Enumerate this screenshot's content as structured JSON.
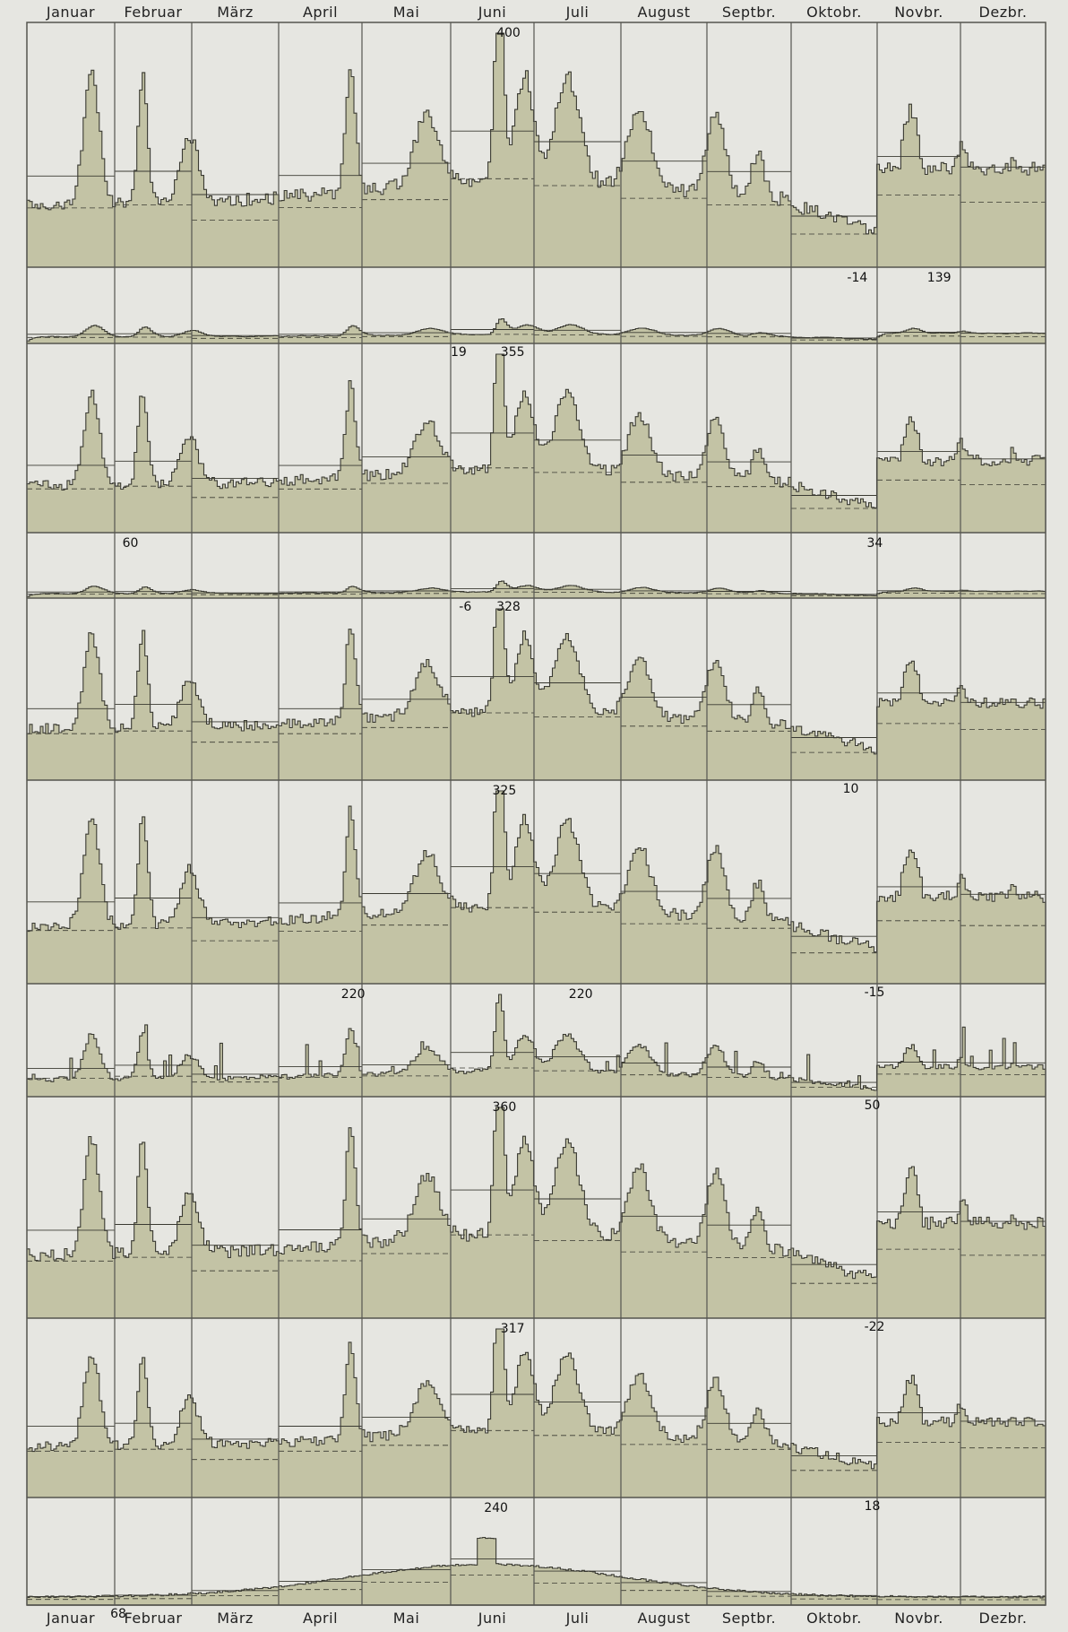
{
  "chart_data": {
    "type": "area",
    "title": "",
    "xlabel": "",
    "ylabel": "",
    "months": [
      "Januar",
      "Februar",
      "März",
      "April",
      "Mai",
      "Juni",
      "Juli",
      "August",
      "Septbr.",
      "Oktobr.",
      "Novbr.",
      "Dezbr."
    ],
    "colors": {
      "fill": "#c3c3a5",
      "line": "#3a3a32",
      "grid": "#55554f",
      "background": "#e6e6e1"
    },
    "panels": [
      {
        "id": 1,
        "annotations": [
          {
            "text": "400",
            "month": 5,
            "frac": 0.55
          }
        ]
      },
      {
        "id": 2,
        "annotations": [
          {
            "text": "19",
            "month": 5,
            "frac": 0.0,
            "below": true
          },
          {
            "text": "355",
            "month": 5,
            "frac": 0.6,
            "below": true
          },
          {
            "text": "-14",
            "month": 9,
            "frac": 0.65
          },
          {
            "text": "139",
            "month": 10,
            "frac": 0.6
          }
        ]
      },
      {
        "id": 3,
        "annotations": []
      },
      {
        "id": 4,
        "annotations": [
          {
            "text": "60",
            "month": 1,
            "frac": 0.1
          },
          {
            "text": "34",
            "month": 9,
            "frac": 0.88
          },
          {
            "text": "-6",
            "month": 5,
            "frac": 0.1,
            "below": true
          },
          {
            "text": "328",
            "month": 5,
            "frac": 0.55,
            "below": true
          }
        ]
      },
      {
        "id": 5,
        "annotations": [
          {
            "text": "10",
            "month": 9,
            "frac": 0.6,
            "below": true
          }
        ]
      },
      {
        "id": 6,
        "annotations": [
          {
            "text": "325",
            "month": 5,
            "frac": 0.5
          },
          {
            "text": "-15",
            "month": 9,
            "frac": 0.85,
            "below": true
          }
        ]
      },
      {
        "id": 7,
        "annotations": [
          {
            "text": "220",
            "month": 3,
            "frac": 0.75
          },
          {
            "text": "220",
            "month": 6,
            "frac": 0.4
          },
          {
            "text": "50",
            "month": 9,
            "frac": 0.85,
            "below": true
          }
        ]
      },
      {
        "id": 8,
        "annotations": [
          {
            "text": "360",
            "month": 5,
            "frac": 0.5
          },
          {
            "text": "-22",
            "month": 9,
            "frac": 0.85,
            "below": true
          }
        ]
      },
      {
        "id": 9,
        "annotations": [
          {
            "text": "317",
            "month": 5,
            "frac": 0.6
          },
          {
            "text": "18",
            "month": 9,
            "frac": 0.85,
            "below": true
          }
        ]
      },
      {
        "id": 10,
        "annotations": [
          {
            "text": "240",
            "month": 5,
            "frac": 0.4
          },
          {
            "text": "68",
            "month": 0,
            "frac": 0.95,
            "below": true
          }
        ]
      }
    ]
  }
}
